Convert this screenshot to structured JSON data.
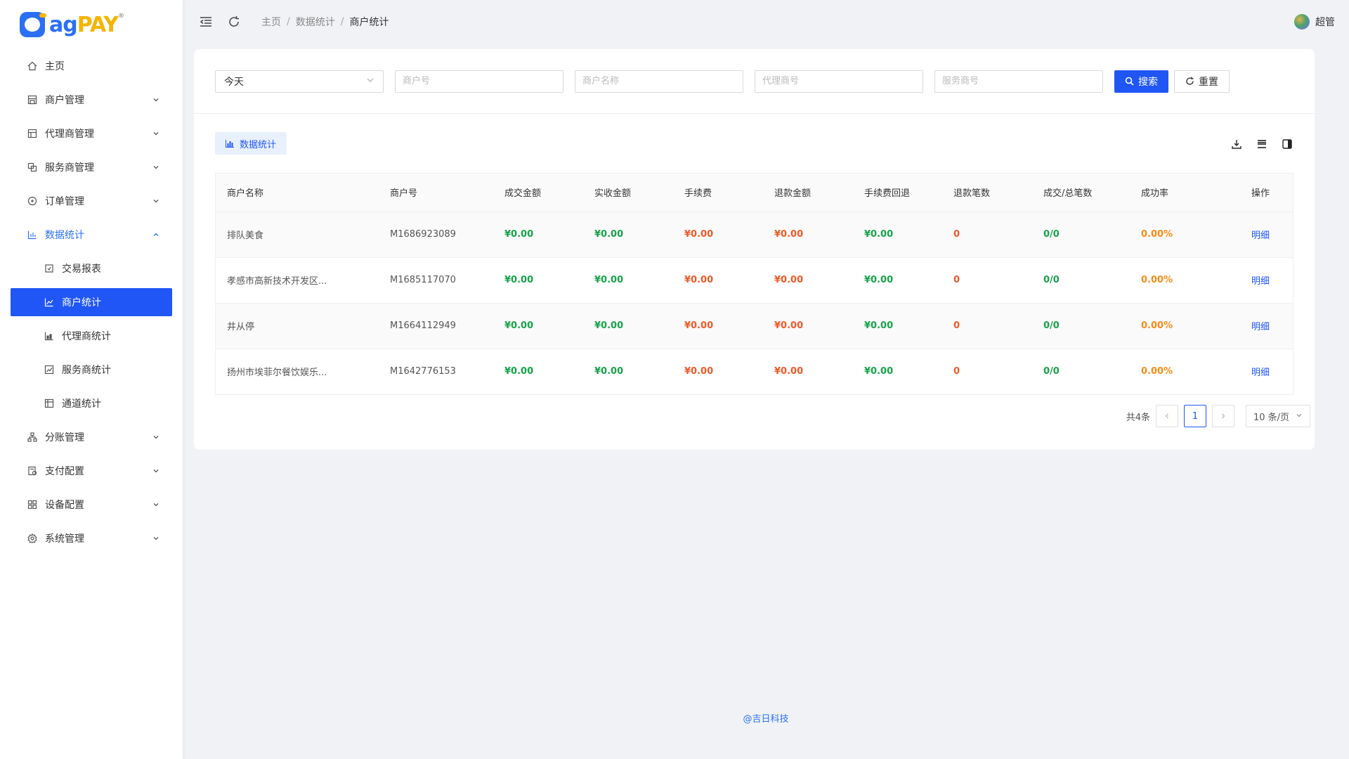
{
  "logo": {
    "ag": "ag",
    "pay": "PAY",
    "tm": "®"
  },
  "sidebar": {
    "items": [
      {
        "label": "主页",
        "icon": "home-icon"
      },
      {
        "label": "商户管理",
        "icon": "shop-icon"
      },
      {
        "label": "代理商管理",
        "icon": "agent-icon"
      },
      {
        "label": "服务商管理",
        "icon": "service-icon"
      },
      {
        "label": "订单管理",
        "icon": "order-icon"
      },
      {
        "label": "数据统计",
        "icon": "bar-chart-icon"
      },
      {
        "label": "分账管理",
        "icon": "split-icon"
      },
      {
        "label": "支付配置",
        "icon": "pay-config-icon"
      },
      {
        "label": "设备配置",
        "icon": "device-icon"
      },
      {
        "label": "系统管理",
        "icon": "settings-icon"
      }
    ],
    "stats_sub": [
      {
        "label": "交易报表"
      },
      {
        "label": "商户统计"
      },
      {
        "label": "代理商统计"
      },
      {
        "label": "服务商统计"
      },
      {
        "label": "通道统计"
      }
    ]
  },
  "header": {
    "breadcrumb": [
      "主页",
      "数据统计",
      "商户统计"
    ],
    "separator": "/",
    "user": "超管"
  },
  "filters": {
    "date_value": "今天",
    "merchant_no_placeholder": "商户号",
    "merchant_name_placeholder": "商户名称",
    "agent_no_placeholder": "代理商号",
    "service_no_placeholder": "服务商号",
    "search_label": "搜索",
    "reset_label": "重置"
  },
  "toolbar": {
    "stats_button": "数据统计"
  },
  "table": {
    "headers": [
      "商户名称",
      "商户号",
      "成交金额",
      "实收金额",
      "手续费",
      "退款金额",
      "手续费回退",
      "退款笔数",
      "成交/总笔数",
      "成功率",
      "操作"
    ],
    "rows": [
      {
        "name": "排队美食",
        "no": "M1686923089",
        "deal": "¥0.00",
        "received": "¥0.00",
        "fee": "¥0.00",
        "refund": "¥0.00",
        "fee_back": "¥0.00",
        "refund_count": "0",
        "ratio": "0/0",
        "rate": "0.00%",
        "op": "明细"
      },
      {
        "name": "孝感市高新技术开发区...",
        "no": "M1685117070",
        "deal": "¥0.00",
        "received": "¥0.00",
        "fee": "¥0.00",
        "refund": "¥0.00",
        "fee_back": "¥0.00",
        "refund_count": "0",
        "ratio": "0/0",
        "rate": "0.00%",
        "op": "明细"
      },
      {
        "name": "井从停",
        "no": "M1664112949",
        "deal": "¥0.00",
        "received": "¥0.00",
        "fee": "¥0.00",
        "refund": "¥0.00",
        "fee_back": "¥0.00",
        "refund_count": "0",
        "ratio": "0/0",
        "rate": "0.00%",
        "op": "明细"
      },
      {
        "name": "扬州市埃菲尔餐饮娱乐...",
        "no": "M1642776153",
        "deal": "¥0.00",
        "received": "¥0.00",
        "fee": "¥0.00",
        "refund": "¥0.00",
        "fee_back": "¥0.00",
        "refund_count": "0",
        "ratio": "0/0",
        "rate": "0.00%",
        "op": "明细"
      }
    ]
  },
  "pager": {
    "total": "共4条",
    "current_page": "1",
    "page_size": "10 条/页"
  },
  "footer": "@吉日科技",
  "colors": {
    "accent": "#1f56f5",
    "green": "#17a34a",
    "red": "#f05a28",
    "orange": "#fa8c16",
    "logo_yellow": "#f5b400"
  }
}
